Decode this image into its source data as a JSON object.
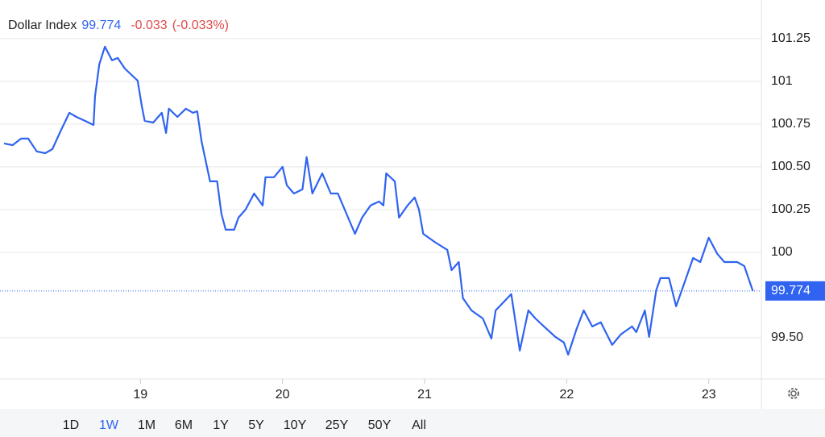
{
  "chart_data": {
    "type": "line",
    "title": "Dollar Index",
    "last_value": 99.774,
    "change": -0.033,
    "change_label": "(-0.033%)",
    "x": [
      18.04,
      18.1,
      18.16,
      18.21,
      18.27,
      18.33,
      18.38,
      18.44,
      18.5,
      18.55,
      18.61,
      18.67,
      18.68,
      18.71,
      18.75,
      18.8,
      18.84,
      18.89,
      18.95,
      18.98,
      19.01,
      19.03,
      19.09,
      19.15,
      19.18,
      19.2,
      19.26,
      19.32,
      19.37,
      19.4,
      19.43,
      19.49,
      19.54,
      19.57,
      19.6,
      19.66,
      19.69,
      19.74,
      19.8,
      19.86,
      19.88,
      19.94,
      20.0,
      20.03,
      20.08,
      20.14,
      20.17,
      20.21,
      20.28,
      20.34,
      20.39,
      20.45,
      20.51,
      20.56,
      20.62,
      20.68,
      20.71,
      20.73,
      20.79,
      20.82,
      20.88,
      20.93,
      20.96,
      20.99,
      21.07,
      21.16,
      21.19,
      21.24,
      21.27,
      21.33,
      21.41,
      21.47,
      21.5,
      21.61,
      21.64,
      21.67,
      21.73,
      21.78,
      21.84,
      21.92,
      21.98,
      22.01,
      22.07,
      22.12,
      22.18,
      22.24,
      22.32,
      22.38,
      22.46,
      22.49,
      22.55,
      22.58,
      22.63,
      22.66,
      22.72,
      22.77,
      22.83,
      22.89,
      22.94,
      23.0,
      23.06,
      23.11,
      23.2,
      23.25,
      23.31
    ],
    "series": [
      {
        "name": "Dollar Index",
        "color": "#2f63f0",
        "values": [
          100.637,
          100.627,
          100.665,
          100.665,
          100.59,
          100.58,
          100.604,
          100.712,
          100.816,
          100.792,
          100.769,
          100.745,
          100.91,
          101.099,
          101.203,
          101.123,
          101.137,
          101.075,
          101.028,
          101.005,
          100.854,
          100.769,
          100.759,
          100.816,
          100.698,
          100.84,
          100.792,
          100.84,
          100.816,
          100.825,
          100.651,
          100.415,
          100.415,
          100.226,
          100.132,
          100.132,
          100.203,
          100.25,
          100.344,
          100.274,
          100.439,
          100.439,
          100.5,
          100.392,
          100.344,
          100.368,
          100.557,
          100.344,
          100.462,
          100.344,
          100.344,
          100.226,
          100.108,
          100.203,
          100.274,
          100.297,
          100.274,
          100.462,
          100.415,
          100.203,
          100.274,
          100.321,
          100.25,
          100.108,
          100.061,
          100.014,
          99.896,
          99.943,
          99.731,
          99.66,
          99.613,
          99.495,
          99.66,
          99.755,
          99.59,
          99.425,
          99.66,
          99.613,
          99.566,
          99.505,
          99.472,
          99.401,
          99.552,
          99.66,
          99.566,
          99.59,
          99.458,
          99.519,
          99.566,
          99.533,
          99.66,
          99.505,
          99.778,
          99.849,
          99.849,
          99.684,
          99.825,
          99.967,
          99.943,
          100.085,
          99.991,
          99.943,
          99.943,
          99.92,
          99.774
        ]
      }
    ],
    "xlim": [
      18.04,
      23.37
    ],
    "xticks": [
      19,
      20,
      21,
      22,
      23
    ],
    "ylim": [
      99.259,
      101.476
    ],
    "yticks": [
      {
        "value": 99.5,
        "label": "99.50"
      },
      100,
      100.25,
      {
        "value": 100.5,
        "label": "100.50"
      },
      100.75,
      101,
      101.25
    ],
    "grid": true,
    "ranges": [
      "1D",
      "1W",
      "1M",
      "6M",
      "1Y",
      "5Y",
      "10Y",
      "25Y",
      "50Y",
      "All"
    ],
    "selected_range": "1W"
  }
}
